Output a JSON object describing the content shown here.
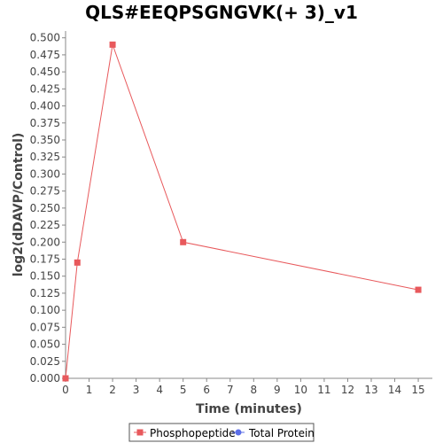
{
  "chart_data": {
    "type": "line",
    "title": "QLS#EEQPSGNGVK(+ 3)_v1",
    "xlabel": "Time (minutes)",
    "ylabel": "log2(dDAVP/Control)",
    "xlim": [
      0,
      15.6
    ],
    "ylim": [
      0,
      0.51
    ],
    "x_ticks": [
      0,
      1,
      2,
      3,
      4,
      5,
      6,
      7,
      8,
      9,
      10,
      11,
      12,
      13,
      14,
      15
    ],
    "y_ticks": [
      0,
      0.025,
      0.05,
      0.075,
      0.1,
      0.125,
      0.15,
      0.175,
      0.2,
      0.225,
      0.25,
      0.275,
      0.3,
      0.325,
      0.35,
      0.375,
      0.4,
      0.425,
      0.45,
      0.475,
      0.5
    ],
    "y_tick_labels": [
      "0.000",
      "0.025",
      "0.050",
      "0.075",
      "0.100",
      "0.125",
      "0.150",
      "0.175",
      "0.200",
      "0.225",
      "0.250",
      "0.275",
      "0.300",
      "0.325",
      "0.350",
      "0.375",
      "0.400",
      "0.425",
      "0.450",
      "0.475",
      "0.500"
    ],
    "grid": false,
    "legend_position": "bottom",
    "series": [
      {
        "name": "Phosphopeptide",
        "color": "#e8595c",
        "marker": "square",
        "x": [
          0,
          0.5,
          2,
          5,
          15
        ],
        "y": [
          0.0,
          0.17,
          0.49,
          0.2,
          0.13
        ]
      },
      {
        "name": "Total Protein",
        "color": "#5b6ee8",
        "marker": "circle",
        "x": [],
        "y": []
      }
    ]
  }
}
